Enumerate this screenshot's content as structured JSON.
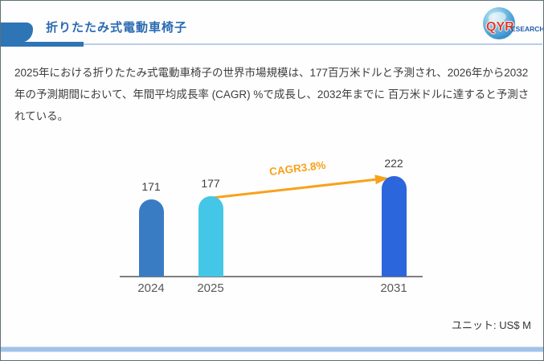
{
  "header": {
    "title": "折りたたみ式電動車椅子",
    "logo": {
      "text_primary": "QYR",
      "text_secondary": "ESEARCH"
    }
  },
  "summary": {
    "text": "2025年における折りたたみ式電動車椅子の世界市場規模は、177百万米ドルと予測され、2026年から2032年の予測期間において、年間平均成長率 (CAGR) %で成長し、2032年までに 百万米ドルに達すると予測されている。"
  },
  "chart_data": {
    "type": "bar",
    "categories": [
      "2024",
      "2025",
      "2031"
    ],
    "values": [
      171,
      177,
      222
    ],
    "bar_colors": [
      "#3a7cc4",
      "#44c7e6",
      "#2b66dd"
    ],
    "value_labels": true,
    "grid": false,
    "ylim": [
      0,
      222
    ],
    "annotation": {
      "label": "CAGR3.8%",
      "color": "#f9a11b",
      "from_category": "2025",
      "to_category": "2031"
    },
    "unit_label": "ユニット: US$ M"
  },
  "colors": {
    "accent_blue": "#2e75b6",
    "underline_light": "#b9cde8",
    "axis_gray": "#7f7f7f",
    "arrow_orange": "#f9a11b"
  }
}
